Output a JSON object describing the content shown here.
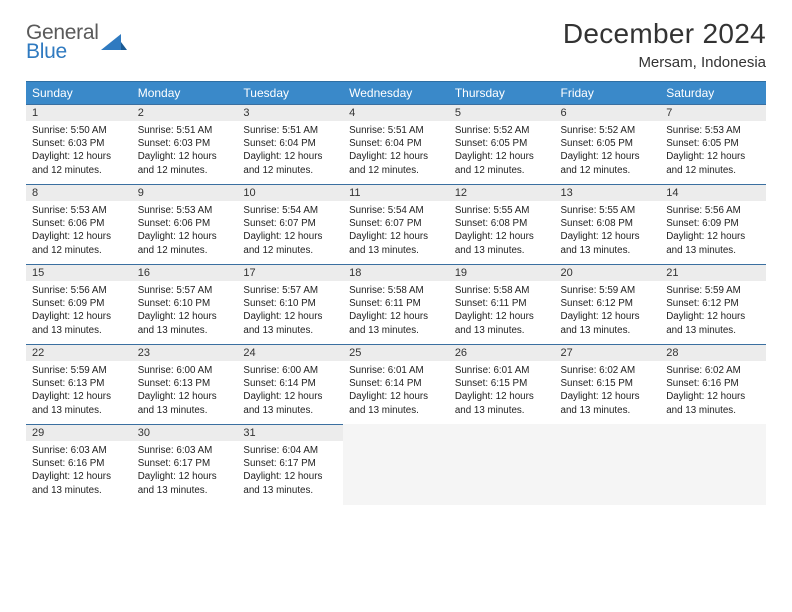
{
  "brand": {
    "name_top": "General",
    "name_bottom": "Blue"
  },
  "title": "December 2024",
  "location": "Mersam, Indonesia",
  "colors": {
    "header_bg": "#3a89c9",
    "header_text": "#ffffff",
    "rule": "#3a6fa0",
    "daynum_bg": "#ececec",
    "empty_bg": "#f5f5f5",
    "text": "#222222",
    "logo_gray": "#5a5a5a",
    "logo_blue": "#2f7ac0"
  },
  "weekdays": [
    "Sunday",
    "Monday",
    "Tuesday",
    "Wednesday",
    "Thursday",
    "Friday",
    "Saturday"
  ],
  "days": [
    {
      "n": 1,
      "sunrise": "5:50 AM",
      "sunset": "6:03 PM",
      "daylight": "12 hours and 12 minutes."
    },
    {
      "n": 2,
      "sunrise": "5:51 AM",
      "sunset": "6:03 PM",
      "daylight": "12 hours and 12 minutes."
    },
    {
      "n": 3,
      "sunrise": "5:51 AM",
      "sunset": "6:04 PM",
      "daylight": "12 hours and 12 minutes."
    },
    {
      "n": 4,
      "sunrise": "5:51 AM",
      "sunset": "6:04 PM",
      "daylight": "12 hours and 12 minutes."
    },
    {
      "n": 5,
      "sunrise": "5:52 AM",
      "sunset": "6:05 PM",
      "daylight": "12 hours and 12 minutes."
    },
    {
      "n": 6,
      "sunrise": "5:52 AM",
      "sunset": "6:05 PM",
      "daylight": "12 hours and 12 minutes."
    },
    {
      "n": 7,
      "sunrise": "5:53 AM",
      "sunset": "6:05 PM",
      "daylight": "12 hours and 12 minutes."
    },
    {
      "n": 8,
      "sunrise": "5:53 AM",
      "sunset": "6:06 PM",
      "daylight": "12 hours and 12 minutes."
    },
    {
      "n": 9,
      "sunrise": "5:53 AM",
      "sunset": "6:06 PM",
      "daylight": "12 hours and 12 minutes."
    },
    {
      "n": 10,
      "sunrise": "5:54 AM",
      "sunset": "6:07 PM",
      "daylight": "12 hours and 12 minutes."
    },
    {
      "n": 11,
      "sunrise": "5:54 AM",
      "sunset": "6:07 PM",
      "daylight": "12 hours and 13 minutes."
    },
    {
      "n": 12,
      "sunrise": "5:55 AM",
      "sunset": "6:08 PM",
      "daylight": "12 hours and 13 minutes."
    },
    {
      "n": 13,
      "sunrise": "5:55 AM",
      "sunset": "6:08 PM",
      "daylight": "12 hours and 13 minutes."
    },
    {
      "n": 14,
      "sunrise": "5:56 AM",
      "sunset": "6:09 PM",
      "daylight": "12 hours and 13 minutes."
    },
    {
      "n": 15,
      "sunrise": "5:56 AM",
      "sunset": "6:09 PM",
      "daylight": "12 hours and 13 minutes."
    },
    {
      "n": 16,
      "sunrise": "5:57 AM",
      "sunset": "6:10 PM",
      "daylight": "12 hours and 13 minutes."
    },
    {
      "n": 17,
      "sunrise": "5:57 AM",
      "sunset": "6:10 PM",
      "daylight": "12 hours and 13 minutes."
    },
    {
      "n": 18,
      "sunrise": "5:58 AM",
      "sunset": "6:11 PM",
      "daylight": "12 hours and 13 minutes."
    },
    {
      "n": 19,
      "sunrise": "5:58 AM",
      "sunset": "6:11 PM",
      "daylight": "12 hours and 13 minutes."
    },
    {
      "n": 20,
      "sunrise": "5:59 AM",
      "sunset": "6:12 PM",
      "daylight": "12 hours and 13 minutes."
    },
    {
      "n": 21,
      "sunrise": "5:59 AM",
      "sunset": "6:12 PM",
      "daylight": "12 hours and 13 minutes."
    },
    {
      "n": 22,
      "sunrise": "5:59 AM",
      "sunset": "6:13 PM",
      "daylight": "12 hours and 13 minutes."
    },
    {
      "n": 23,
      "sunrise": "6:00 AM",
      "sunset": "6:13 PM",
      "daylight": "12 hours and 13 minutes."
    },
    {
      "n": 24,
      "sunrise": "6:00 AM",
      "sunset": "6:14 PM",
      "daylight": "12 hours and 13 minutes."
    },
    {
      "n": 25,
      "sunrise": "6:01 AM",
      "sunset": "6:14 PM",
      "daylight": "12 hours and 13 minutes."
    },
    {
      "n": 26,
      "sunrise": "6:01 AM",
      "sunset": "6:15 PM",
      "daylight": "12 hours and 13 minutes."
    },
    {
      "n": 27,
      "sunrise": "6:02 AM",
      "sunset": "6:15 PM",
      "daylight": "12 hours and 13 minutes."
    },
    {
      "n": 28,
      "sunrise": "6:02 AM",
      "sunset": "6:16 PM",
      "daylight": "12 hours and 13 minutes."
    },
    {
      "n": 29,
      "sunrise": "6:03 AM",
      "sunset": "6:16 PM",
      "daylight": "12 hours and 13 minutes."
    },
    {
      "n": 30,
      "sunrise": "6:03 AM",
      "sunset": "6:17 PM",
      "daylight": "12 hours and 13 minutes."
    },
    {
      "n": 31,
      "sunrise": "6:04 AM",
      "sunset": "6:17 PM",
      "daylight": "12 hours and 13 minutes."
    }
  ],
  "labels": {
    "sunrise": "Sunrise:",
    "sunset": "Sunset:",
    "daylight": "Daylight:"
  },
  "grid": {
    "start_weekday": 0,
    "rows": 5,
    "cols": 7
  }
}
